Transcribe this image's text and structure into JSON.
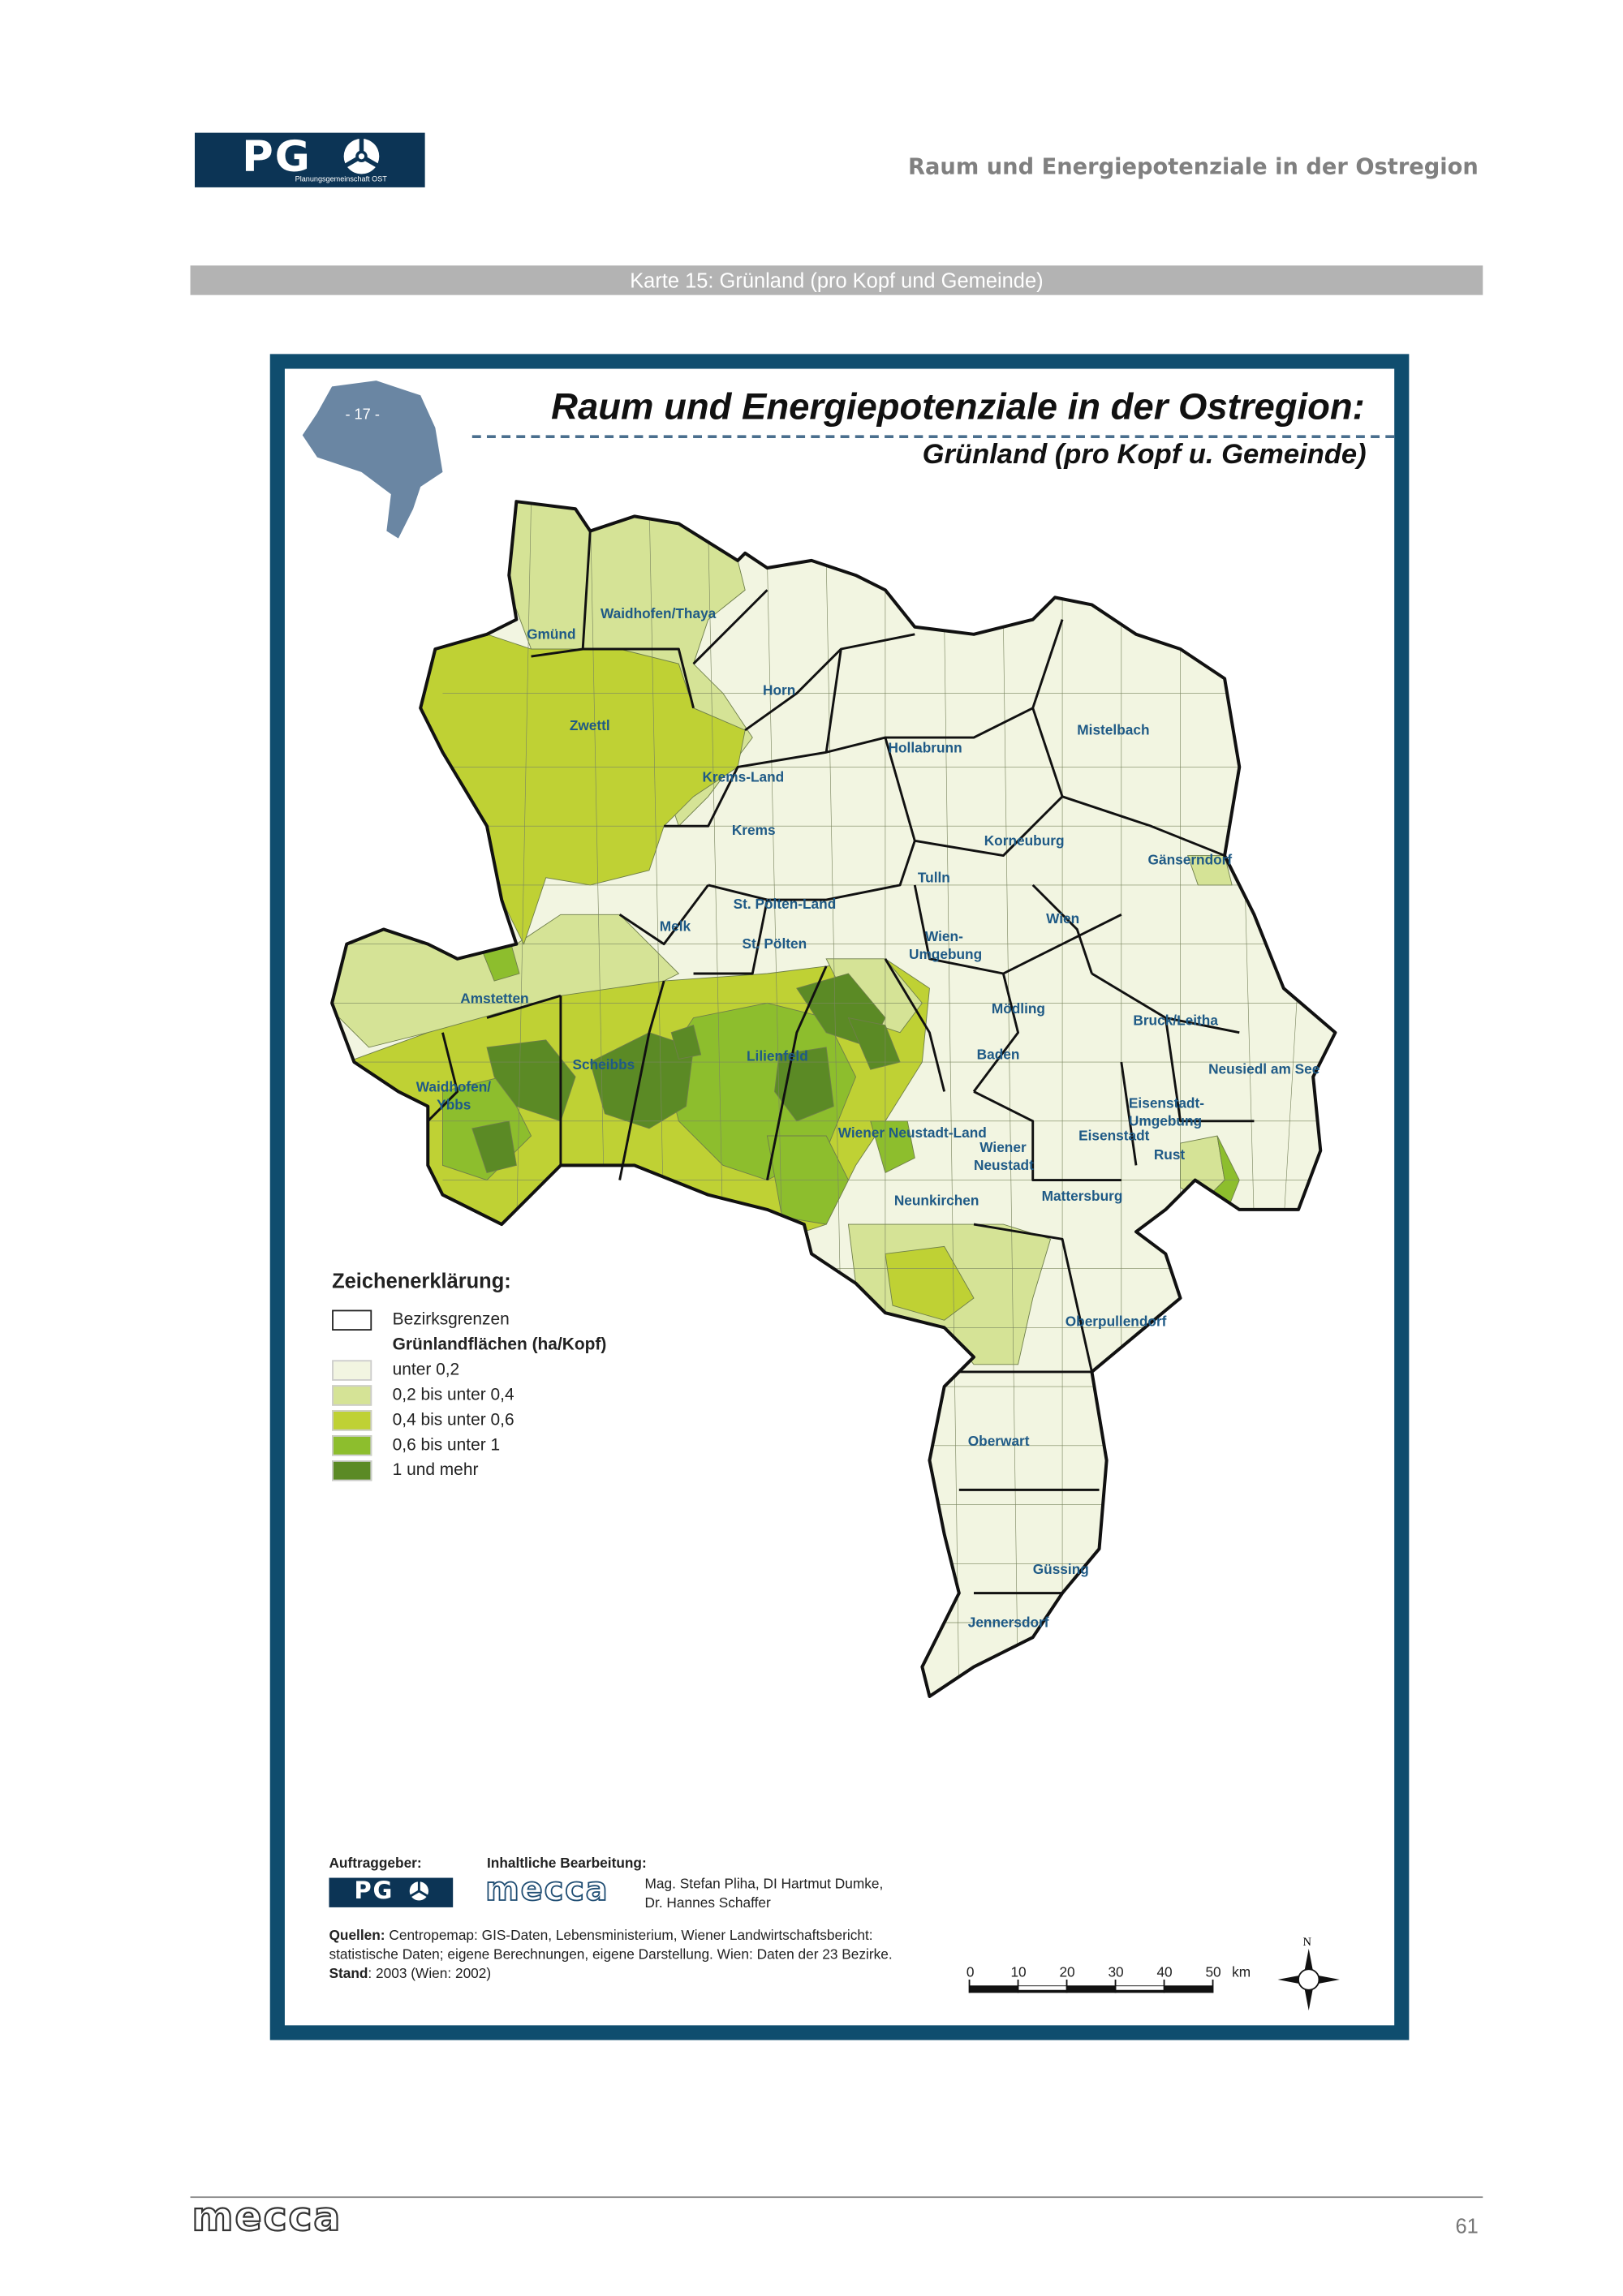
{
  "header": {
    "logo_text": "PG",
    "logo_subtitle": "Planungsgemeinschaft OST",
    "title": "Raum und Energiepotenziale in der Ostregion"
  },
  "map_caption": "Karte 15: Grünland (pro Kopf und Gemeinde)",
  "map": {
    "inset_label": "- 17 -",
    "title": "Raum und Energiepotenziale in der Ostregion:",
    "subtitle": "Grünland (pro Kopf u. Gemeinde)",
    "districts": [
      "Waidhofen/Thaya",
      "Gmünd",
      "Horn",
      "Zwettl",
      "Hollabrunn",
      "Mistelbach",
      "Krems-Land",
      "Krems",
      "Korneuburg",
      "Gänserndorf",
      "Tulln",
      "St. Pölten-Land",
      "Melk",
      "Wien",
      "St. Pölten",
      "Wien-",
      "Umgebung",
      "Amstetten",
      "Mödling",
      "Bruck/Leitha",
      "Scheibbs",
      "Lilienfeld",
      "Baden",
      "Neusiedl am See",
      "Waidhofen/",
      "Ybbs",
      "Eisenstadt-",
      "Umgebung",
      "Wiener Neustadt-Land",
      "Eisenstadt",
      "Wiener",
      "Neustadt",
      "Rust",
      "Neunkirchen",
      "Mattersburg",
      "Oberpullendorf",
      "Oberwart",
      "Güssing",
      "Jennersdorf"
    ]
  },
  "legend": {
    "title": "Zeichenerklärung:",
    "boundary_label": "Bezirksgrenzen",
    "group_title": "Grünlandflächen (ha/Kopf)",
    "classes": [
      {
        "label": "unter 0,2",
        "color": "#f2f5e1"
      },
      {
        "label": "0,2 bis unter 0,4",
        "color": "#d5e396"
      },
      {
        "label": "0,4 bis unter 0,6",
        "color": "#bfd134"
      },
      {
        "label": "0,6 bis unter 1",
        "color": "#8dbe2d"
      },
      {
        "label": "1 und mehr",
        "color": "#5b8a25"
      }
    ]
  },
  "credits": {
    "client_label": "Auftraggeber:",
    "editor_label": "Inhaltliche Bearbeitung:",
    "editor_logo": "mecca",
    "authors_line1": "Mag. Stefan Pliha, DI Hartmut Dumke,",
    "authors_line2": "Dr. Hannes Schaffer",
    "sources_label": "Quellen:",
    "sources_line1": "Centropemap: GIS-Daten, Lebensministerium, Wiener Landwirtschaftsbericht:",
    "sources_line2": "statistische Daten; eigene Berechnungen, eigene Darstellung. Wien: Daten der 23 Bezirke.",
    "stand_label": "Stand",
    "stand_value": ": 2003 (Wien: 2002)"
  },
  "scale_bar": {
    "ticks": [
      "0",
      "10",
      "20",
      "30",
      "40",
      "50"
    ],
    "unit": "km"
  },
  "compass": {
    "north_label": "N"
  },
  "footer": {
    "logo": "mecca",
    "page_number": "61"
  },
  "colors": {
    "frame": "#0f4d6e",
    "brand": "#0c3455",
    "label": "#1f5a86"
  }
}
